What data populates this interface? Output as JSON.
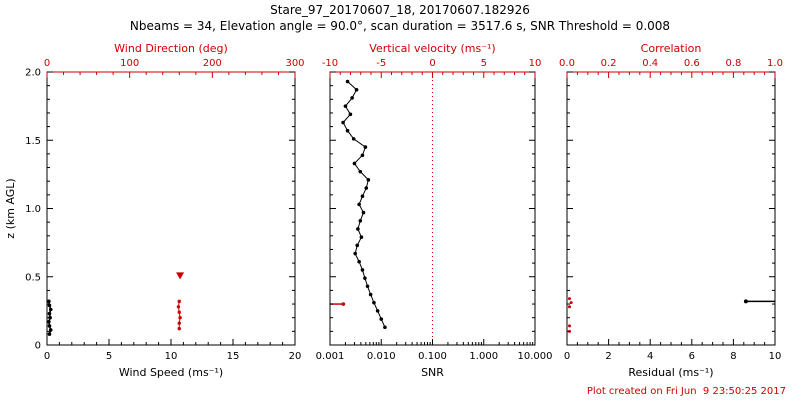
{
  "header": {
    "title": "Stare_97_20170607_18, 20170607.182926",
    "subtitle": "Nbeams = 34, Elevation angle = 90.0°, scan duration = 3517.6 s, SNR Threshold = 0.008"
  },
  "footer": {
    "created": "Plot created on Fri Jun  9 23:50:25 2017"
  },
  "colors": {
    "ink": "#000000",
    "accent": "#cc0000"
  },
  "chart_data": [
    {
      "type": "scatter",
      "name": "wind-panel",
      "xlabel": "Wind Speed (ms⁻¹)",
      "xlim": [
        0,
        20
      ],
      "xticks": [
        0,
        5,
        10,
        15,
        20
      ],
      "xtick_labels": [
        "0",
        "5",
        "10",
        "15",
        "20"
      ],
      "xminor": 1,
      "ylabel": "z (km AGL)",
      "ylim": [
        0,
        2
      ],
      "yticks": [
        0,
        0.5,
        1,
        1.5,
        2
      ],
      "ytick_labels": [
        "0",
        "0.5",
        "1.0",
        "1.5",
        "2.0"
      ],
      "yminor": 0.1,
      "show_ytick_labels": true,
      "top_axis": {
        "label": "Wind Direction (deg)",
        "lim": [
          0,
          300
        ],
        "ticks": [
          0,
          100,
          200,
          300
        ],
        "tick_labels": [
          "0",
          "100",
          "200",
          "300"
        ],
        "minor": 20
      },
      "series": [
        {
          "name": "wind-speed",
          "axis": "bottom",
          "color": "#000000",
          "marker": "dot",
          "size": 1.8,
          "connect": true,
          "width": 1.5,
          "points": [
            [
              0.2,
              0.08
            ],
            [
              0.3,
              0.11
            ],
            [
              0.2,
              0.14
            ],
            [
              0.15,
              0.17
            ],
            [
              0.25,
              0.2
            ],
            [
              0.2,
              0.23
            ],
            [
              0.3,
              0.26
            ],
            [
              0.2,
              0.29
            ],
            [
              0.15,
              0.32
            ]
          ]
        },
        {
          "name": "wind-direction",
          "axis": "top",
          "color": "#cc0000",
          "marker": "dot",
          "size": 1.7,
          "connect": true,
          "width": 1,
          "points": [
            [
              160,
              0.12
            ],
            [
              160,
              0.16
            ],
            [
              161,
              0.2
            ],
            [
              160,
              0.24
            ],
            [
              159,
              0.28
            ],
            [
              160,
              0.32
            ]
          ]
        },
        {
          "name": "wind-direction-upper",
          "axis": "top",
          "color": "#cc0000",
          "marker": "triangle",
          "connect": false,
          "points": [
            [
              161,
              0.51
            ]
          ]
        }
      ]
    },
    {
      "type": "scatter",
      "name": "snr-panel",
      "xlabel": "SNR",
      "xscale": "log",
      "xlim": [
        0.001,
        10
      ],
      "xticks": [
        0.001,
        0.01,
        0.1,
        1,
        10
      ],
      "xtick_labels": [
        "0.001",
        "0.010",
        "0.100",
        "1.000",
        "10.000"
      ],
      "ylim": [
        0,
        2
      ],
      "yticks": [
        0,
        0.5,
        1,
        1.5,
        2
      ],
      "yminor": 0.1,
      "show_ytick_labels": false,
      "top_axis": {
        "label": "Vertical velocity (ms⁻¹)",
        "lim": [
          -10,
          10
        ],
        "ticks": [
          -10,
          -5,
          0,
          5,
          10
        ],
        "tick_labels": [
          "-10",
          "-5",
          "0",
          "5",
          "10"
        ],
        "minor": 1
      },
      "ref_line": {
        "axis": "top",
        "value": 0,
        "style": "dotted"
      },
      "series": [
        {
          "name": "snr-profile",
          "axis": "bottom",
          "color": "#000000",
          "marker": "dot",
          "size": 1.8,
          "connect": true,
          "width": 1,
          "points": [
            [
              0.0118,
              0.13
            ],
            [
              0.01,
              0.19
            ],
            [
              0.0085,
              0.25
            ],
            [
              0.0072,
              0.31
            ],
            [
              0.0062,
              0.37
            ],
            [
              0.0054,
              0.43
            ],
            [
              0.0048,
              0.49
            ],
            [
              0.0043,
              0.55
            ],
            [
              0.0037,
              0.61
            ],
            [
              0.0031,
              0.67
            ],
            [
              0.0034,
              0.73
            ],
            [
              0.0041,
              0.79
            ],
            [
              0.0035,
              0.85
            ],
            [
              0.0039,
              0.91
            ],
            [
              0.0045,
              0.97
            ],
            [
              0.0037,
              1.03
            ],
            [
              0.0043,
              1.09
            ],
            [
              0.0051,
              1.15
            ],
            [
              0.0056,
              1.21
            ],
            [
              0.0039,
              1.27
            ],
            [
              0.003,
              1.33
            ],
            [
              0.0043,
              1.39
            ],
            [
              0.0049,
              1.45
            ],
            [
              0.0029,
              1.51
            ],
            [
              0.0022,
              1.57
            ],
            [
              0.0018,
              1.63
            ],
            [
              0.0025,
              1.69
            ],
            [
              0.002,
              1.75
            ],
            [
              0.0027,
              1.81
            ],
            [
              0.0033,
              1.87
            ],
            [
              0.0022,
              1.93
            ]
          ]
        },
        {
          "name": "vertical-velocity",
          "axis": "top",
          "color": "#cc0000",
          "marker": "dot",
          "size": 1.8,
          "connect": true,
          "width": 1.5,
          "markers": "last",
          "points": [
            [
              -10,
              0.3
            ],
            [
              -8.7,
              0.3
            ]
          ]
        }
      ]
    },
    {
      "type": "scatter",
      "name": "residual-panel",
      "xlabel": "Residual (ms⁻¹)",
      "xlim": [
        0,
        10
      ],
      "xticks": [
        0,
        2,
        4,
        6,
        8,
        10
      ],
      "xtick_labels": [
        "0",
        "2",
        "4",
        "6",
        "8",
        "10"
      ],
      "xminor": 0.5,
      "ylim": [
        0,
        2
      ],
      "yticks": [
        0,
        0.5,
        1,
        1.5,
        2
      ],
      "yminor": 0.1,
      "show_ytick_labels": false,
      "top_axis": {
        "label": "Correlation",
        "lim": [
          0,
          1
        ],
        "ticks": [
          0,
          0.2,
          0.4,
          0.6,
          0.8,
          1
        ],
        "tick_labels": [
          "0.0",
          "0.2",
          "0.4",
          "0.6",
          "0.8",
          "1.0"
        ],
        "minor": 0.05
      },
      "series": [
        {
          "name": "correlation",
          "axis": "top",
          "color": "#cc0000",
          "marker": "dot",
          "size": 1.5,
          "connect": false,
          "points": [
            [
              0.012,
              0.1
            ],
            [
              0.012,
              0.14
            ],
            [
              0.012,
              0.28
            ],
            [
              0.02,
              0.31
            ],
            [
              0.012,
              0.34
            ]
          ]
        },
        {
          "name": "residual",
          "axis": "bottom",
          "color": "#000000",
          "marker": "dot",
          "size": 2,
          "connect": true,
          "width": 1.5,
          "markers": "first",
          "points": [
            [
              8.6,
              0.32
            ],
            [
              10,
              0.32
            ]
          ]
        }
      ]
    }
  ]
}
